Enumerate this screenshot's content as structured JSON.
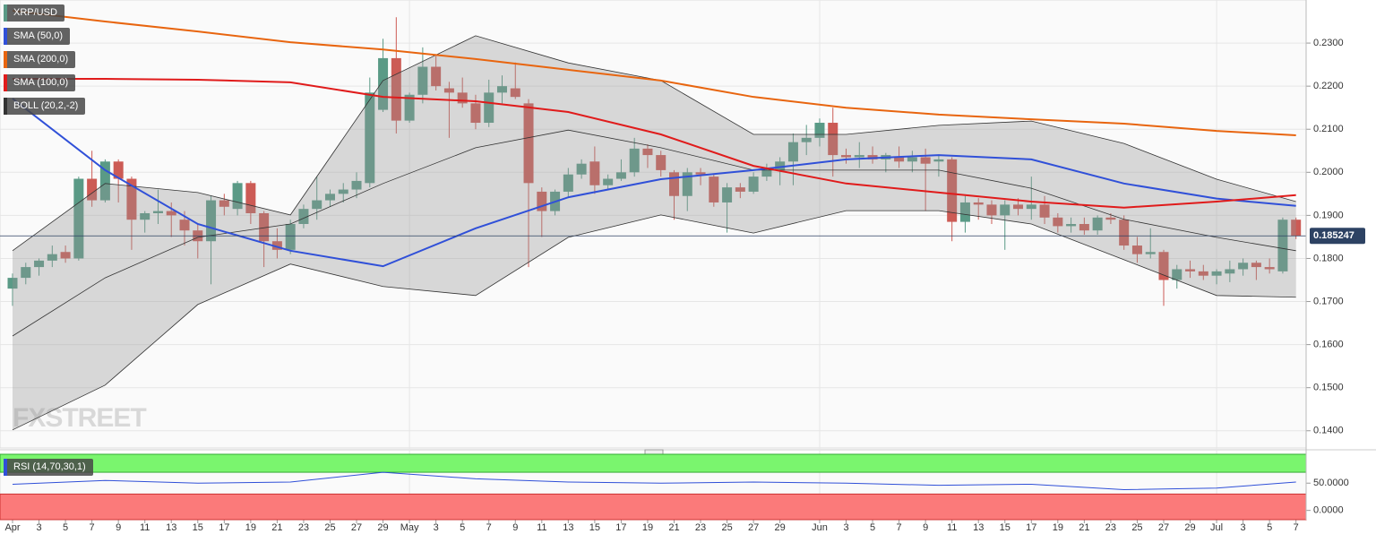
{
  "chart_data": {
    "type": "candlestick",
    "symbol": "XRP/USD",
    "up_color": "#5a9a86",
    "down_color": "#cc5b55",
    "open": [
      0.173,
      0.1755,
      0.178,
      0.1795,
      0.1815,
      0.18,
      0.1985,
      0.1935,
      0.2025,
      0.1985,
      0.189,
      0.1905,
      0.191,
      0.189,
      0.1865,
      0.184,
      0.1935,
      0.1915,
      0.1975,
      0.1905,
      0.184,
      0.182,
      0.188,
      0.1915,
      0.1935,
      0.195,
      0.196,
      0.1975,
      0.2145,
      0.2265,
      0.212,
      0.218,
      0.2245,
      0.2195,
      0.2185,
      0.216,
      0.2115,
      0.2185,
      0.2195,
      0.216,
      0.1955,
      0.191,
      0.1955,
      0.1995,
      0.2025,
      0.197,
      0.1985,
      0.2,
      0.2055,
      0.204,
      0.2,
      0.1945,
      0.2,
      0.199,
      0.193,
      0.1965,
      0.1955,
      0.199,
      0.2005,
      0.2025,
      0.207,
      0.208,
      0.2115,
      0.204,
      0.2035,
      0.204,
      0.203,
      0.2035,
      0.2025,
      0.2035,
      0.2025,
      0.203,
      0.1885,
      0.193,
      0.1925,
      0.19,
      0.1925,
      0.1915,
      0.1925,
      0.1895,
      0.1875,
      0.188,
      0.1865,
      0.1895,
      0.189,
      0.183,
      0.181,
      0.1815,
      0.175,
      0.1775,
      0.177,
      0.176,
      0.1765,
      0.1775,
      0.179,
      0.178,
      0.177,
      0.189
    ],
    "high": [
      0.1765,
      0.179,
      0.18,
      0.183,
      0.183,
      0.199,
      0.205,
      0.203,
      0.203,
      0.199,
      0.191,
      0.196,
      0.193,
      0.191,
      0.188,
      0.1945,
      0.195,
      0.198,
      0.198,
      0.191,
      0.187,
      0.189,
      0.1925,
      0.199,
      0.196,
      0.1975,
      0.2,
      0.222,
      0.231,
      0.236,
      0.2185,
      0.229,
      0.227,
      0.221,
      0.222,
      0.218,
      0.2215,
      0.2225,
      0.2255,
      0.217,
      0.1965,
      0.196,
      0.201,
      0.203,
      0.206,
      0.1995,
      0.203,
      0.208,
      0.2065,
      0.205,
      0.2005,
      0.201,
      0.201,
      0.1995,
      0.1975,
      0.1975,
      0.2,
      0.202,
      0.2035,
      0.209,
      0.211,
      0.2125,
      0.215,
      0.2055,
      0.207,
      0.206,
      0.2045,
      0.206,
      0.205,
      0.2055,
      0.204,
      0.2035,
      0.1945,
      0.194,
      0.1935,
      0.1935,
      0.194,
      0.199,
      0.1945,
      0.1905,
      0.1895,
      0.1895,
      0.19,
      0.1905,
      0.19,
      0.185,
      0.187,
      0.182,
      0.1785,
      0.1795,
      0.1785,
      0.1775,
      0.1795,
      0.18,
      0.1795,
      0.18,
      0.1895,
      0.1895
    ],
    "low": [
      0.169,
      0.174,
      0.176,
      0.178,
      0.179,
      0.1795,
      0.192,
      0.193,
      0.193,
      0.182,
      0.186,
      0.188,
      0.185,
      0.183,
      0.18,
      0.174,
      0.19,
      0.19,
      0.188,
      0.178,
      0.18,
      0.181,
      0.187,
      0.189,
      0.192,
      0.193,
      0.194,
      0.1965,
      0.214,
      0.209,
      0.2115,
      0.216,
      0.219,
      0.208,
      0.215,
      0.21,
      0.2105,
      0.216,
      0.217,
      0.178,
      0.185,
      0.19,
      0.194,
      0.1985,
      0.195,
      0.196,
      0.198,
      0.199,
      0.201,
      0.199,
      0.189,
      0.191,
      0.197,
      0.192,
      0.186,
      0.194,
      0.195,
      0.198,
      0.197,
      0.197,
      0.204,
      0.206,
      0.199,
      0.202,
      0.201,
      0.202,
      0.2,
      0.201,
      0.2,
      0.191,
      0.199,
      0.184,
      0.186,
      0.189,
      0.188,
      0.182,
      0.19,
      0.189,
      0.188,
      0.186,
      0.186,
      0.1855,
      0.1855,
      0.188,
      0.182,
      0.179,
      0.18,
      0.169,
      0.173,
      0.1755,
      0.175,
      0.174,
      0.1745,
      0.176,
      0.175,
      0.1765,
      0.1765,
      0.1845
    ],
    "close": [
      0.1755,
      0.178,
      0.1795,
      0.181,
      0.18,
      0.1985,
      0.1935,
      0.2025,
      0.1985,
      0.189,
      0.1905,
      0.191,
      0.19,
      0.1865,
      0.184,
      0.1935,
      0.192,
      0.1975,
      0.1905,
      0.184,
      0.182,
      0.188,
      0.1915,
      0.1935,
      0.195,
      0.196,
      0.198,
      0.2185,
      0.2265,
      0.212,
      0.218,
      0.2245,
      0.22,
      0.2185,
      0.216,
      0.2115,
      0.2185,
      0.22,
      0.2175,
      0.1975,
      0.191,
      0.1955,
      0.1995,
      0.202,
      0.197,
      0.1985,
      0.2,
      0.2055,
      0.204,
      0.2005,
      0.1945,
      0.2,
      0.1995,
      0.193,
      0.1965,
      0.1955,
      0.199,
      0.2005,
      0.2025,
      0.207,
      0.208,
      0.2115,
      0.204,
      0.2035,
      0.204,
      0.203,
      0.204,
      0.2025,
      0.2035,
      0.202,
      0.203,
      0.1885,
      0.193,
      0.1925,
      0.19,
      0.1925,
      0.1915,
      0.1925,
      0.1895,
      0.1875,
      0.188,
      0.1865,
      0.1895,
      0.189,
      0.183,
      0.181,
      0.1815,
      0.175,
      0.1775,
      0.177,
      0.176,
      0.177,
      0.1775,
      0.179,
      0.178,
      0.1775,
      0.189,
      0.1852
    ],
    "ylim": [
      0.136,
      0.24
    ],
    "yticks": [
      {
        "value": 0.14,
        "label": "0.1400"
      },
      {
        "value": 0.15,
        "label": "0.1500"
      },
      {
        "value": 0.16,
        "label": "0.1600"
      },
      {
        "value": 0.17,
        "label": "0.1700"
      },
      {
        "value": 0.18,
        "label": "0.1800"
      },
      {
        "value": 0.19,
        "label": "0.1900"
      },
      {
        "value": 0.2,
        "label": "0.2000"
      },
      {
        "value": 0.21,
        "label": "0.2100"
      },
      {
        "value": 0.22,
        "label": "0.2200"
      },
      {
        "value": 0.23,
        "label": "0.2300"
      }
    ],
    "xticks": [
      {
        "value": 0,
        "label": "Apr"
      },
      {
        "value": 2,
        "label": "3"
      },
      {
        "value": 4,
        "label": "5"
      },
      {
        "value": 6,
        "label": "7"
      },
      {
        "value": 8,
        "label": "9"
      },
      {
        "value": 10,
        "label": "11"
      },
      {
        "value": 12,
        "label": "13"
      },
      {
        "value": 14,
        "label": "15"
      },
      {
        "value": 16,
        "label": "17"
      },
      {
        "value": 18,
        "label": "19"
      },
      {
        "value": 20,
        "label": "21"
      },
      {
        "value": 22,
        "label": "23"
      },
      {
        "value": 24,
        "label": "25"
      },
      {
        "value": 26,
        "label": "27"
      },
      {
        "value": 28,
        "label": "29"
      },
      {
        "value": 30,
        "label": "May"
      },
      {
        "value": 32,
        "label": "3"
      },
      {
        "value": 34,
        "label": "5"
      },
      {
        "value": 36,
        "label": "7"
      },
      {
        "value": 38,
        "label": "9"
      },
      {
        "value": 40,
        "label": "11"
      },
      {
        "value": 42,
        "label": "13"
      },
      {
        "value": 44,
        "label": "15"
      },
      {
        "value": 46,
        "label": "17"
      },
      {
        "value": 48,
        "label": "19"
      },
      {
        "value": 50,
        "label": "21"
      },
      {
        "value": 52,
        "label": "23"
      },
      {
        "value": 54,
        "label": "25"
      },
      {
        "value": 56,
        "label": "27"
      },
      {
        "value": 58,
        "label": "29"
      },
      {
        "value": 61,
        "label": "Jun"
      },
      {
        "value": 63,
        "label": "3"
      },
      {
        "value": 65,
        "label": "5"
      },
      {
        "value": 67,
        "label": "7"
      },
      {
        "value": 69,
        "label": "9"
      },
      {
        "value": 71,
        "label": "11"
      },
      {
        "value": 73,
        "label": "13"
      },
      {
        "value": 75,
        "label": "15"
      },
      {
        "value": 77,
        "label": "17"
      },
      {
        "value": 79,
        "label": "19"
      },
      {
        "value": 81,
        "label": "21"
      },
      {
        "value": 83,
        "label": "23"
      },
      {
        "value": 85,
        "label": "25"
      },
      {
        "value": 87,
        "label": "27"
      },
      {
        "value": 89,
        "label": "29"
      },
      {
        "value": 91,
        "label": "Jul"
      },
      {
        "value": 93,
        "label": "3"
      },
      {
        "value": 95,
        "label": "5"
      },
      {
        "value": 97,
        "label": "7"
      }
    ],
    "month_starts": [
      30,
      61,
      91
    ],
    "last_price": 0.185247,
    "overlays": [
      {
        "name": "SMA (50,0)",
        "color": "#3050d8",
        "x": [
          0,
          7,
          14,
          21,
          28,
          35,
          42,
          49,
          56,
          63,
          70,
          77,
          84,
          91,
          97
        ],
        "values": [
          0.2171,
          0.2005,
          0.188,
          0.1818,
          0.1782,
          0.187,
          0.1942,
          0.1984,
          0.2005,
          0.203,
          0.204,
          0.203,
          0.1974,
          0.1939,
          0.1922
        ]
      },
      {
        "name": "SMA (200,0)",
        "color": "#e8650f",
        "x": [
          0,
          7,
          14,
          21,
          28,
          35,
          42,
          49,
          56,
          63,
          70,
          77,
          84,
          91,
          97
        ],
        "values": [
          0.2375,
          0.235,
          0.2327,
          0.2302,
          0.2285,
          0.2263,
          0.2238,
          0.2213,
          0.2175,
          0.215,
          0.2134,
          0.2123,
          0.2113,
          0.2096,
          0.2086
        ]
      },
      {
        "name": "SMA (100,0)",
        "color": "#e01b1b",
        "x": [
          0,
          7,
          14,
          21,
          28,
          35,
          42,
          49,
          56,
          63,
          70,
          77,
          84,
          91,
          97
        ],
        "values": [
          0.2217,
          0.2217,
          0.2215,
          0.2209,
          0.2175,
          0.2165,
          0.214,
          0.2088,
          0.2015,
          0.1974,
          0.1953,
          0.1932,
          0.1918,
          0.1932,
          0.1947
        ]
      }
    ],
    "bollinger": {
      "name": "BOLL (20,2,-2)",
      "color": "#333333",
      "x": [
        0,
        7,
        14,
        21,
        28,
        35,
        42,
        49,
        56,
        63,
        70,
        77,
        84,
        91,
        97
      ],
      "upper": [
        0.1818,
        0.1974,
        0.1953,
        0.1901,
        0.2213,
        0.2317,
        0.2254,
        0.2213,
        0.2088,
        0.2088,
        0.2109,
        0.2119,
        0.2067,
        0.1984,
        0.1932
      ],
      "middle": [
        0.162,
        0.1755,
        0.1849,
        0.188,
        0.1974,
        0.2057,
        0.2098,
        0.2057,
        0.2005,
        0.2005,
        0.2005,
        0.1963,
        0.1891,
        0.1849,
        0.1818
      ],
      "lower": [
        0.1402,
        0.1506,
        0.1693,
        0.1787,
        0.1735,
        0.1714,
        0.1849,
        0.1901,
        0.1859,
        0.1911,
        0.1911,
        0.188,
        0.1797,
        0.1714,
        0.171
      ]
    },
    "rsi": {
      "name": "RSI (14,70,30,1)",
      "color": "#3050d8",
      "x": [
        0,
        7,
        14,
        21,
        28,
        35,
        42,
        49,
        56,
        63,
        70,
        77,
        84,
        91,
        97
      ],
      "values": [
        48,
        55,
        50,
        52,
        70,
        58,
        52,
        50,
        52,
        50,
        46,
        48,
        38,
        41,
        52
      ],
      "ylim": [
        -17,
        103
      ],
      "yticks": [
        {
          "value": 0,
          "label": "0.0000"
        },
        {
          "value": 50,
          "label": "50.0000"
        }
      ],
      "overbought": 70,
      "oversold": 30
    },
    "watermark": "FXSTREET"
  }
}
